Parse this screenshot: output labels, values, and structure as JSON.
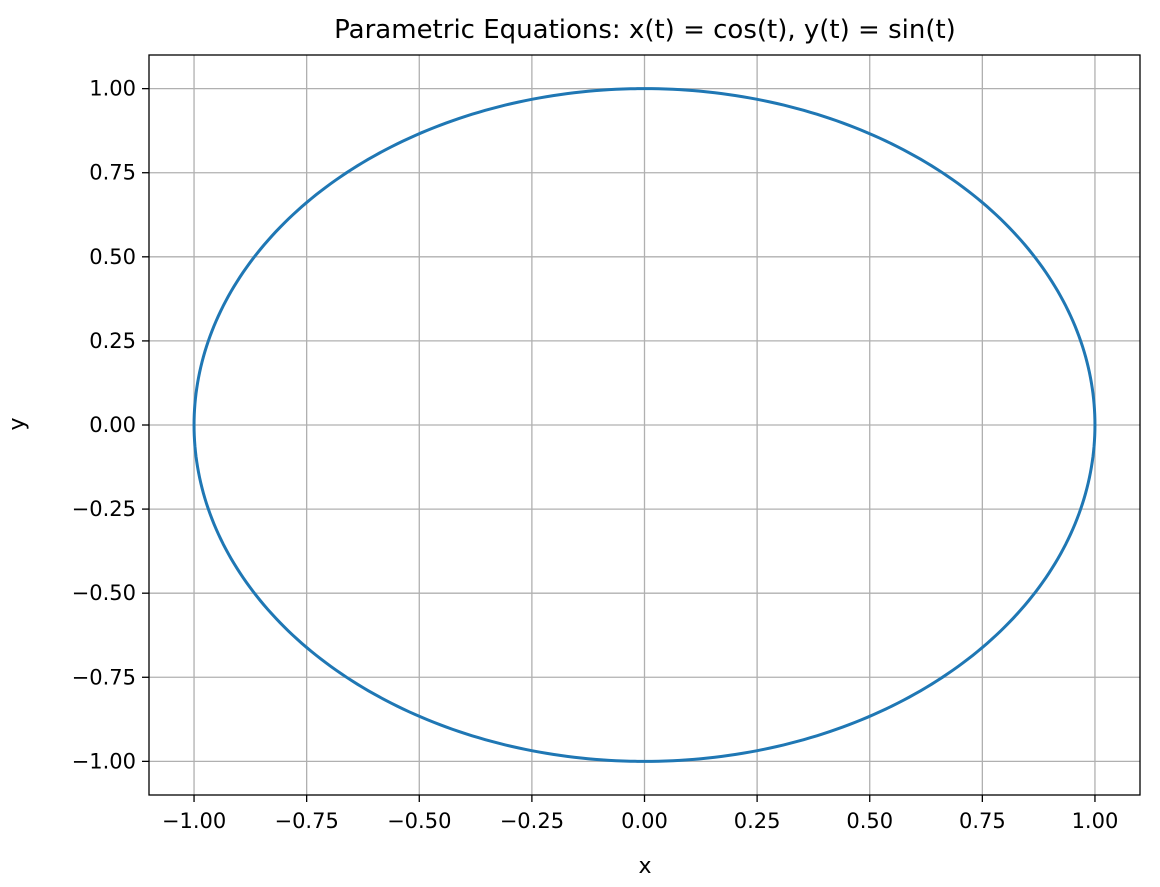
{
  "chart_data": {
    "type": "line",
    "title": "Parametric Equations: x(t) = cos(t), y(t) = sin(t)",
    "xlabel": "x",
    "ylabel": "y",
    "xlim": [
      -1.1,
      1.1
    ],
    "ylim": [
      -1.1,
      1.1
    ],
    "grid": true,
    "legend": "none",
    "xticks": [
      -1.0,
      -0.75,
      -0.5,
      -0.25,
      0.0,
      0.25,
      0.5,
      0.75,
      1.0
    ],
    "xtick_labels": [
      "−1.00",
      "−0.75",
      "−0.50",
      "−0.25",
      "0.00",
      "0.25",
      "0.50",
      "0.75",
      "1.00"
    ],
    "yticks": [
      -1.0,
      -0.75,
      -0.5,
      -0.25,
      0.0,
      0.25,
      0.5,
      0.75,
      1.0
    ],
    "ytick_labels": [
      "−1.00",
      "−0.75",
      "−0.50",
      "−0.25",
      "0.00",
      "0.25",
      "0.50",
      "0.75",
      "1.00"
    ],
    "series": [
      {
        "color": "#1f77b4",
        "parametric": {
          "x": "cos(t)",
          "y": "sin(t)",
          "t_range": [
            0,
            6.283185307
          ]
        },
        "x": [
          1.0,
          0.9848,
          0.9397,
          0.866,
          0.766,
          0.6428,
          0.5,
          0.342,
          0.1736,
          0.0,
          -0.1736,
          -0.342,
          -0.5,
          -0.6428,
          -0.766,
          -0.866,
          -0.9397,
          -0.9848,
          -1.0,
          -0.9848,
          -0.9397,
          -0.866,
          -0.766,
          -0.6428,
          -0.5,
          -0.342,
          -0.1736,
          0.0,
          0.1736,
          0.342,
          0.5,
          0.6428,
          0.766,
          0.866,
          0.9397,
          0.9848,
          1.0
        ],
        "y": [
          0.0,
          0.1736,
          0.342,
          0.5,
          0.6428,
          0.766,
          0.866,
          0.9397,
          0.9848,
          1.0,
          0.9848,
          0.9397,
          0.866,
          0.766,
          0.6428,
          0.5,
          0.342,
          0.1736,
          0.0,
          -0.1736,
          -0.342,
          -0.5,
          -0.6428,
          -0.766,
          -0.866,
          -0.9397,
          -0.9848,
          -1.0,
          -0.9848,
          -0.9397,
          -0.866,
          -0.766,
          -0.6428,
          -0.5,
          -0.342,
          -0.1736,
          0.0
        ]
      }
    ],
    "colors": {
      "grid": "#b0b0b0",
      "spine": "#000000"
    }
  }
}
